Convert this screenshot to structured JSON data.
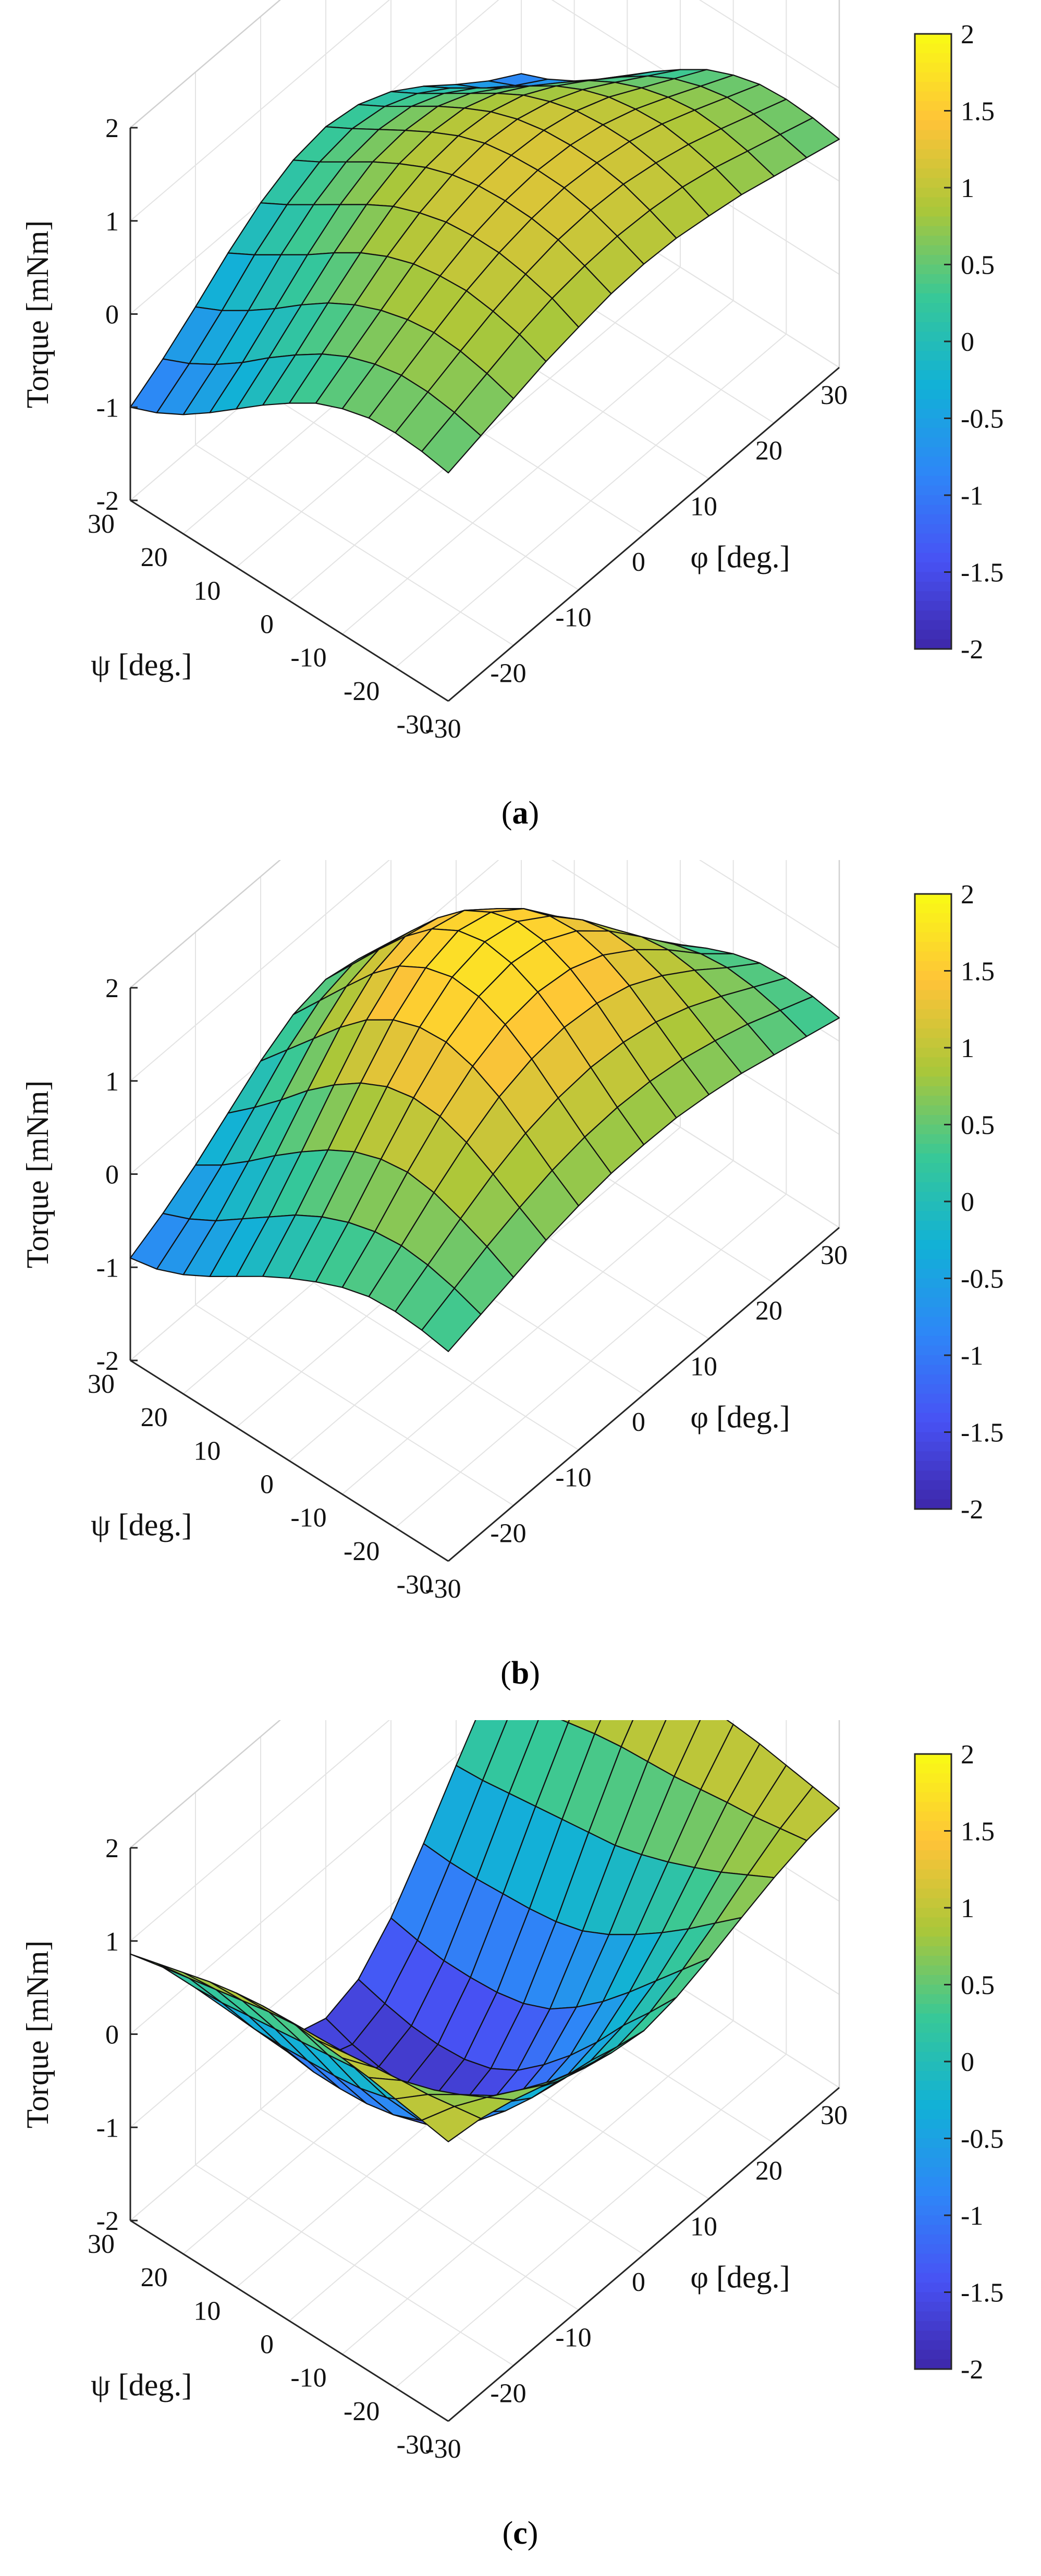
{
  "chart_data": [
    {
      "type": "surface",
      "panel": "a",
      "zlabel": "Torque [mNm]",
      "xlabel": "φ [deg.]",
      "ylabel": "ψ [deg.]",
      "x_ticks": [
        "-30",
        "-20",
        "-10",
        "0",
        "10",
        "20",
        "30"
      ],
      "y_ticks": [
        "30",
        "20",
        "10",
        "0",
        "-10",
        "-20",
        "-30"
      ],
      "z_ticks": [
        "2",
        "1",
        "0",
        "-1",
        "-2"
      ],
      "zlim": [
        -2,
        2
      ],
      "xlim": [
        -30,
        30
      ],
      "ylim": [
        -30,
        30
      ],
      "colorbar_ticks": [
        "2",
        "1.5",
        "1",
        "0.5",
        "0",
        "-0.5",
        "-1",
        "-1.5",
        "-2"
      ],
      "caption_letter": "a",
      "grid_x": [
        -30,
        -25,
        -20,
        -15,
        -10,
        -5,
        0,
        5,
        10,
        15,
        20,
        25,
        30
      ],
      "grid_y": [
        -30,
        -25,
        -20,
        -15,
        -10,
        -5,
        0,
        5,
        10,
        15,
        20,
        25,
        30
      ],
      "z": [
        [
          0.45,
          0.55,
          0.65,
          0.75,
          0.82,
          0.88,
          0.9,
          0.88,
          0.82,
          0.75,
          0.65,
          0.55,
          0.45
        ],
        [
          0.5,
          0.62,
          0.74,
          0.86,
          0.95,
          1.0,
          1.02,
          1.0,
          0.95,
          0.86,
          0.74,
          0.62,
          0.5
        ],
        [
          0.52,
          0.66,
          0.8,
          0.93,
          1.03,
          1.1,
          1.12,
          1.1,
          1.03,
          0.93,
          0.8,
          0.66,
          0.52
        ],
        [
          0.5,
          0.66,
          0.82,
          0.97,
          1.08,
          1.15,
          1.18,
          1.15,
          1.08,
          0.97,
          0.82,
          0.66,
          0.5
        ],
        [
          0.42,
          0.6,
          0.78,
          0.95,
          1.08,
          1.16,
          1.19,
          1.16,
          1.08,
          0.95,
          0.78,
          0.6,
          0.42
        ],
        [
          0.3,
          0.5,
          0.7,
          0.9,
          1.05,
          1.14,
          1.17,
          1.14,
          1.05,
          0.9,
          0.7,
          0.5,
          0.3
        ],
        [
          0.12,
          0.35,
          0.58,
          0.8,
          0.97,
          1.08,
          1.12,
          1.08,
          0.97,
          0.8,
          0.58,
          0.35,
          0.12
        ],
        [
          -0.08,
          0.16,
          0.42,
          0.66,
          0.86,
          0.98,
          1.02,
          0.98,
          0.86,
          0.66,
          0.42,
          0.16,
          -0.08
        ],
        [
          -0.3,
          -0.05,
          0.22,
          0.48,
          0.7,
          0.84,
          0.88,
          0.84,
          0.7,
          0.48,
          0.22,
          -0.05,
          -0.3
        ],
        [
          -0.52,
          -0.28,
          0.0,
          0.28,
          0.52,
          0.68,
          0.72,
          0.68,
          0.52,
          0.28,
          0.0,
          -0.28,
          -0.52
        ],
        [
          -0.72,
          -0.48,
          -0.2,
          0.1,
          0.34,
          0.5,
          0.55,
          0.5,
          0.34,
          0.1,
          -0.2,
          -0.48,
          -0.72
        ],
        [
          -0.88,
          -0.65,
          -0.38,
          -0.08,
          0.16,
          0.32,
          0.38,
          0.32,
          0.16,
          -0.08,
          -0.38,
          -0.65,
          -0.88
        ],
        [
          -1.0,
          -0.78,
          -0.52,
          -0.24,
          0.0,
          0.16,
          0.22,
          0.16,
          0.0,
          -0.24,
          -0.52,
          -0.78,
          -1.0
        ]
      ]
    },
    {
      "type": "surface",
      "panel": "b",
      "zlabel": "Torque [mNm]",
      "xlabel": "φ [deg.]",
      "ylabel": "ψ [deg.]",
      "x_ticks": [
        "-30",
        "-20",
        "-10",
        "0",
        "10",
        "20",
        "30"
      ],
      "y_ticks": [
        "30",
        "20",
        "10",
        "0",
        "-10",
        "-20",
        "-30"
      ],
      "z_ticks": [
        "2",
        "1",
        "0",
        "-1",
        "-2"
      ],
      "zlim": [
        -2,
        2
      ],
      "xlim": [
        -30,
        30
      ],
      "ylim": [
        -30,
        30
      ],
      "colorbar_ticks": [
        "2",
        "1.5",
        "1",
        "0.5",
        "0",
        "-0.5",
        "-1",
        "-1.5",
        "-2"
      ],
      "caption_letter": "b",
      "grid_x": [
        -30,
        -25,
        -20,
        -15,
        -10,
        -5,
        0,
        5,
        10,
        15,
        20,
        25,
        30
      ],
      "grid_y": [
        -30,
        -25,
        -20,
        -15,
        -10,
        -5,
        0,
        5,
        10,
        15,
        20,
        25,
        30
      ],
      "z": [
        [
          0.25,
          0.35,
          0.45,
          0.55,
          0.62,
          0.67,
          0.68,
          0.67,
          0.62,
          0.55,
          0.45,
          0.35,
          0.25
        ],
        [
          0.3,
          0.45,
          0.6,
          0.72,
          0.82,
          0.88,
          0.9,
          0.88,
          0.82,
          0.72,
          0.6,
          0.45,
          0.3
        ],
        [
          0.32,
          0.52,
          0.72,
          0.9,
          1.04,
          1.12,
          1.15,
          1.12,
          1.04,
          0.9,
          0.72,
          0.52,
          0.32
        ],
        [
          0.3,
          0.55,
          0.82,
          1.06,
          1.25,
          1.36,
          1.4,
          1.36,
          1.25,
          1.06,
          0.82,
          0.55,
          0.3
        ],
        [
          0.22,
          0.52,
          0.86,
          1.16,
          1.4,
          1.55,
          1.6,
          1.55,
          1.4,
          1.16,
          0.86,
          0.52,
          0.22
        ],
        [
          0.1,
          0.44,
          0.82,
          1.18,
          1.48,
          1.67,
          1.73,
          1.67,
          1.48,
          1.18,
          0.82,
          0.44,
          0.1
        ],
        [
          -0.04,
          0.32,
          0.72,
          1.12,
          1.46,
          1.7,
          1.78,
          1.7,
          1.46,
          1.12,
          0.72,
          0.32,
          -0.04
        ],
        [
          -0.2,
          0.16,
          0.56,
          0.98,
          1.36,
          1.62,
          1.72,
          1.62,
          1.36,
          0.98,
          0.56,
          0.16,
          -0.2
        ],
        [
          -0.38,
          -0.04,
          0.36,
          0.78,
          1.18,
          1.46,
          1.56,
          1.46,
          1.18,
          0.78,
          0.36,
          -0.04,
          -0.38
        ],
        [
          -0.56,
          -0.24,
          0.14,
          0.54,
          0.92,
          1.2,
          1.3,
          1.2,
          0.92,
          0.54,
          0.14,
          -0.24,
          -0.56
        ],
        [
          -0.72,
          -0.44,
          -0.1,
          0.26,
          0.62,
          0.88,
          0.98,
          0.88,
          0.62,
          0.26,
          -0.1,
          -0.44,
          -0.72
        ],
        [
          -0.84,
          -0.6,
          -0.32,
          0.0,
          0.32,
          0.55,
          0.64,
          0.55,
          0.32,
          0.0,
          -0.32,
          -0.6,
          -0.84
        ],
        [
          -0.9,
          -0.72,
          -0.5,
          -0.24,
          0.02,
          0.22,
          0.3,
          0.22,
          0.02,
          -0.24,
          -0.5,
          -0.72,
          -0.9
        ]
      ]
    },
    {
      "type": "surface",
      "panel": "c",
      "zlabel": "Torque [mNm]",
      "xlabel": "φ [deg.]",
      "ylabel": "ψ [deg.]",
      "x_ticks": [
        "-30",
        "-20",
        "-10",
        "0",
        "10",
        "20",
        "30"
      ],
      "y_ticks": [
        "30",
        "20",
        "10",
        "0",
        "-10",
        "-20",
        "-30"
      ],
      "z_ticks": [
        "2",
        "1",
        "0",
        "-1",
        "-2"
      ],
      "zlim": [
        -2,
        2
      ],
      "xlim": [
        -30,
        30
      ],
      "ylim": [
        -30,
        30
      ],
      "colorbar_ticks": [
        "2",
        "1.5",
        "1",
        "0.5",
        "0",
        "-0.5",
        "-1",
        "-1.5",
        "-2"
      ],
      "caption_letter": "c",
      "grid_x": [
        -30,
        -25,
        -20,
        -15,
        -10,
        -5,
        0,
        5,
        10,
        15,
        20,
        25,
        30
      ],
      "grid_y": [
        -30,
        -25,
        -20,
        -15,
        -10,
        -5,
        0,
        5,
        10,
        15,
        20,
        25,
        30
      ],
      "z": [
        [
          1.0,
          0.95,
          0.85,
          0.72,
          0.58,
          0.46,
          0.4,
          0.46,
          0.58,
          0.72,
          0.85,
          0.95,
          1.0
        ],
        [
          1.05,
          0.9,
          0.7,
          0.48,
          0.28,
          0.12,
          0.05,
          0.12,
          0.28,
          0.48,
          0.7,
          0.9,
          1.05
        ],
        [
          1.1,
          0.85,
          0.55,
          0.24,
          -0.02,
          -0.2,
          -0.28,
          -0.2,
          -0.02,
          0.24,
          0.55,
          0.85,
          1.1
        ],
        [
          1.15,
          0.82,
          0.42,
          0.02,
          -0.32,
          -0.56,
          -0.65,
          -0.56,
          -0.32,
          0.02,
          0.42,
          0.82,
          1.15
        ],
        [
          1.18,
          0.78,
          0.3,
          -0.18,
          -0.6,
          -0.88,
          -0.98,
          -0.88,
          -0.6,
          -0.18,
          0.3,
          0.78,
          1.18
        ],
        [
          1.2,
          0.74,
          0.2,
          -0.36,
          -0.84,
          -1.16,
          -1.28,
          -1.16,
          -0.84,
          -0.36,
          0.2,
          0.74,
          1.2
        ],
        [
          1.22,
          0.72,
          0.12,
          -0.5,
          -1.04,
          -1.4,
          -1.52,
          -1.4,
          -1.04,
          -0.5,
          0.12,
          0.72,
          1.22
        ],
        [
          1.2,
          0.7,
          0.08,
          -0.58,
          -1.16,
          -1.56,
          -1.7,
          -1.56,
          -1.16,
          -0.58,
          0.08,
          0.7,
          1.2
        ],
        [
          1.16,
          0.66,
          0.04,
          -0.62,
          -1.22,
          -1.64,
          -1.78,
          -1.64,
          -1.22,
          -0.62,
          0.04,
          0.66,
          1.16
        ],
        [
          1.1,
          0.6,
          0.0,
          -0.64,
          -1.24,
          -1.66,
          -1.8,
          -1.66,
          -1.24,
          -0.64,
          0.0,
          0.6,
          1.1
        ],
        [
          1.02,
          0.54,
          -0.04,
          -0.66,
          -1.24,
          -1.64,
          -1.78,
          -1.64,
          -1.24,
          -0.66,
          -0.04,
          0.54,
          1.02
        ],
        [
          0.94,
          0.48,
          -0.08,
          -0.66,
          -1.2,
          -1.58,
          -1.72,
          -1.58,
          -1.2,
          -0.66,
          -0.08,
          0.48,
          0.94
        ],
        [
          0.86,
          0.42,
          -0.1,
          -0.64,
          -1.14,
          -1.5,
          -1.62,
          -1.5,
          -1.14,
          -0.64,
          -0.1,
          0.42,
          0.86
        ]
      ]
    }
  ]
}
